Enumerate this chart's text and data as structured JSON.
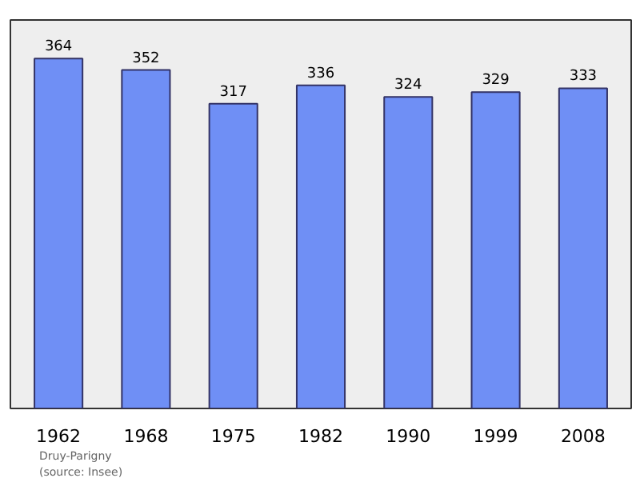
{
  "chart_data": {
    "type": "bar",
    "categories": [
      "1962",
      "1968",
      "1975",
      "1982",
      "1990",
      "1999",
      "2008"
    ],
    "values": [
      364,
      352,
      317,
      336,
      324,
      329,
      333
    ],
    "color": "#6f8ff5",
    "data_labels": true,
    "grid": false,
    "annotations": [
      "Druy-Parigny",
      "(source: Insee)"
    ]
  }
}
